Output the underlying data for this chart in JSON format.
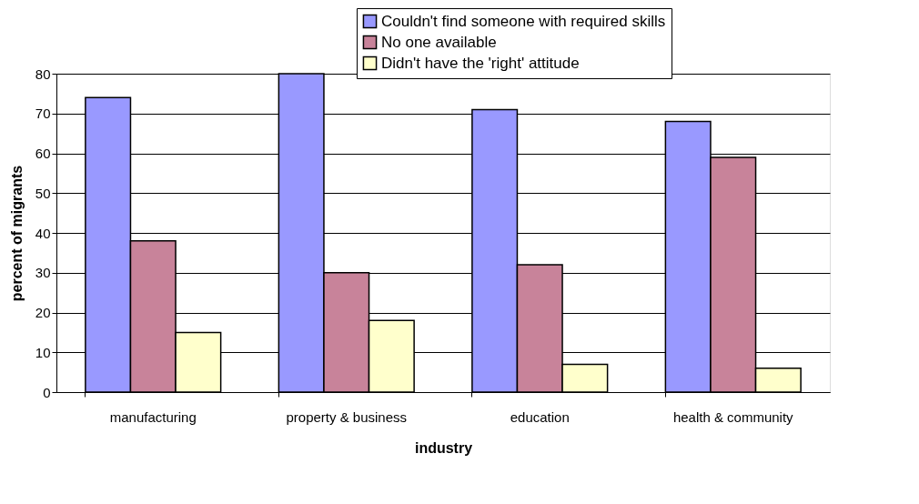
{
  "chart_data": {
    "type": "bar",
    "xlabel": "industry",
    "ylabel": "percent of migrants",
    "categories": [
      "manufacturing",
      "property & business",
      "education",
      "health & community"
    ],
    "series": [
      {
        "name": "Couldn't find someone with required skills",
        "color": "#9999ff",
        "values": [
          74,
          80,
          71,
          68
        ]
      },
      {
        "name": "No one available",
        "color": "#c8839a",
        "values": [
          38,
          30,
          32,
          59
        ]
      },
      {
        "name": "Didn't have the 'right' attitude",
        "color": "#ffffcc",
        "values": [
          15,
          18,
          7,
          6
        ]
      }
    ],
    "ylim": [
      0,
      80
    ],
    "yticks": [
      0,
      10,
      20,
      30,
      40,
      50,
      60,
      70,
      80
    ],
    "grid": "y",
    "legend": "top right"
  }
}
